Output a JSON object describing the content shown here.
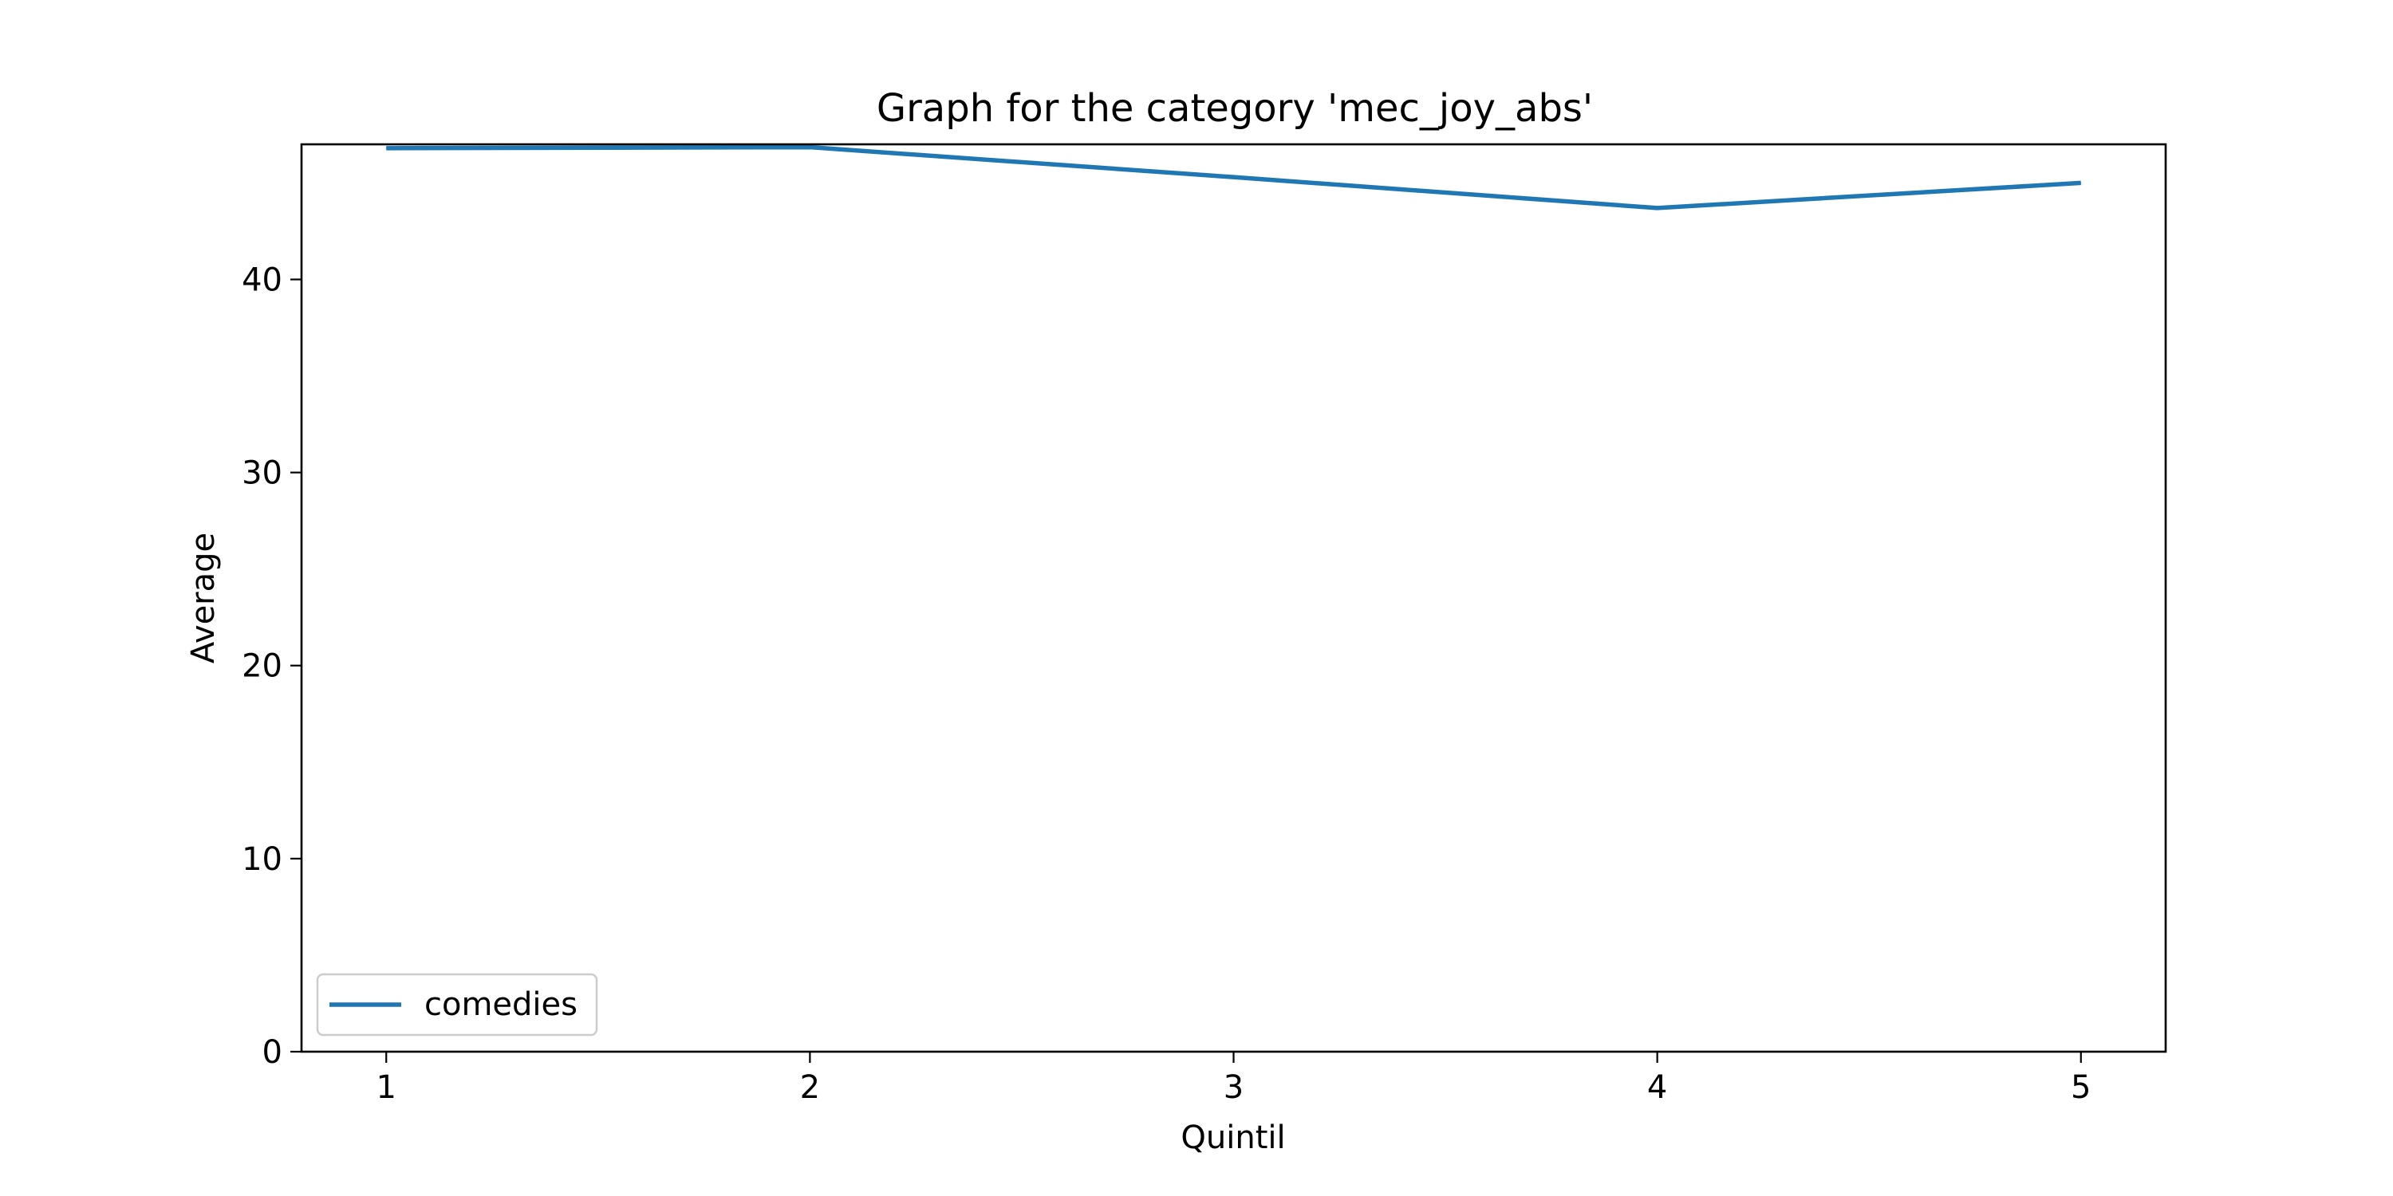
{
  "chart_data": {
    "type": "line",
    "title": "Graph for the category 'mec_joy_abs'",
    "xlabel": "Quintil",
    "ylabel": "Average",
    "x": [
      1,
      2,
      3,
      4,
      5
    ],
    "series": [
      {
        "name": "comedies",
        "values": [
          46.8,
          46.85,
          45.3,
          43.7,
          45.0
        ],
        "color": "#1f77b4"
      }
    ],
    "xlim": [
      0.8,
      5.2
    ],
    "ylim": [
      0,
      47
    ],
    "xticks": [
      1,
      2,
      3,
      4,
      5
    ],
    "yticks": [
      0,
      10,
      20,
      30,
      40
    ],
    "grid": false,
    "legend_position": "lower-left"
  }
}
